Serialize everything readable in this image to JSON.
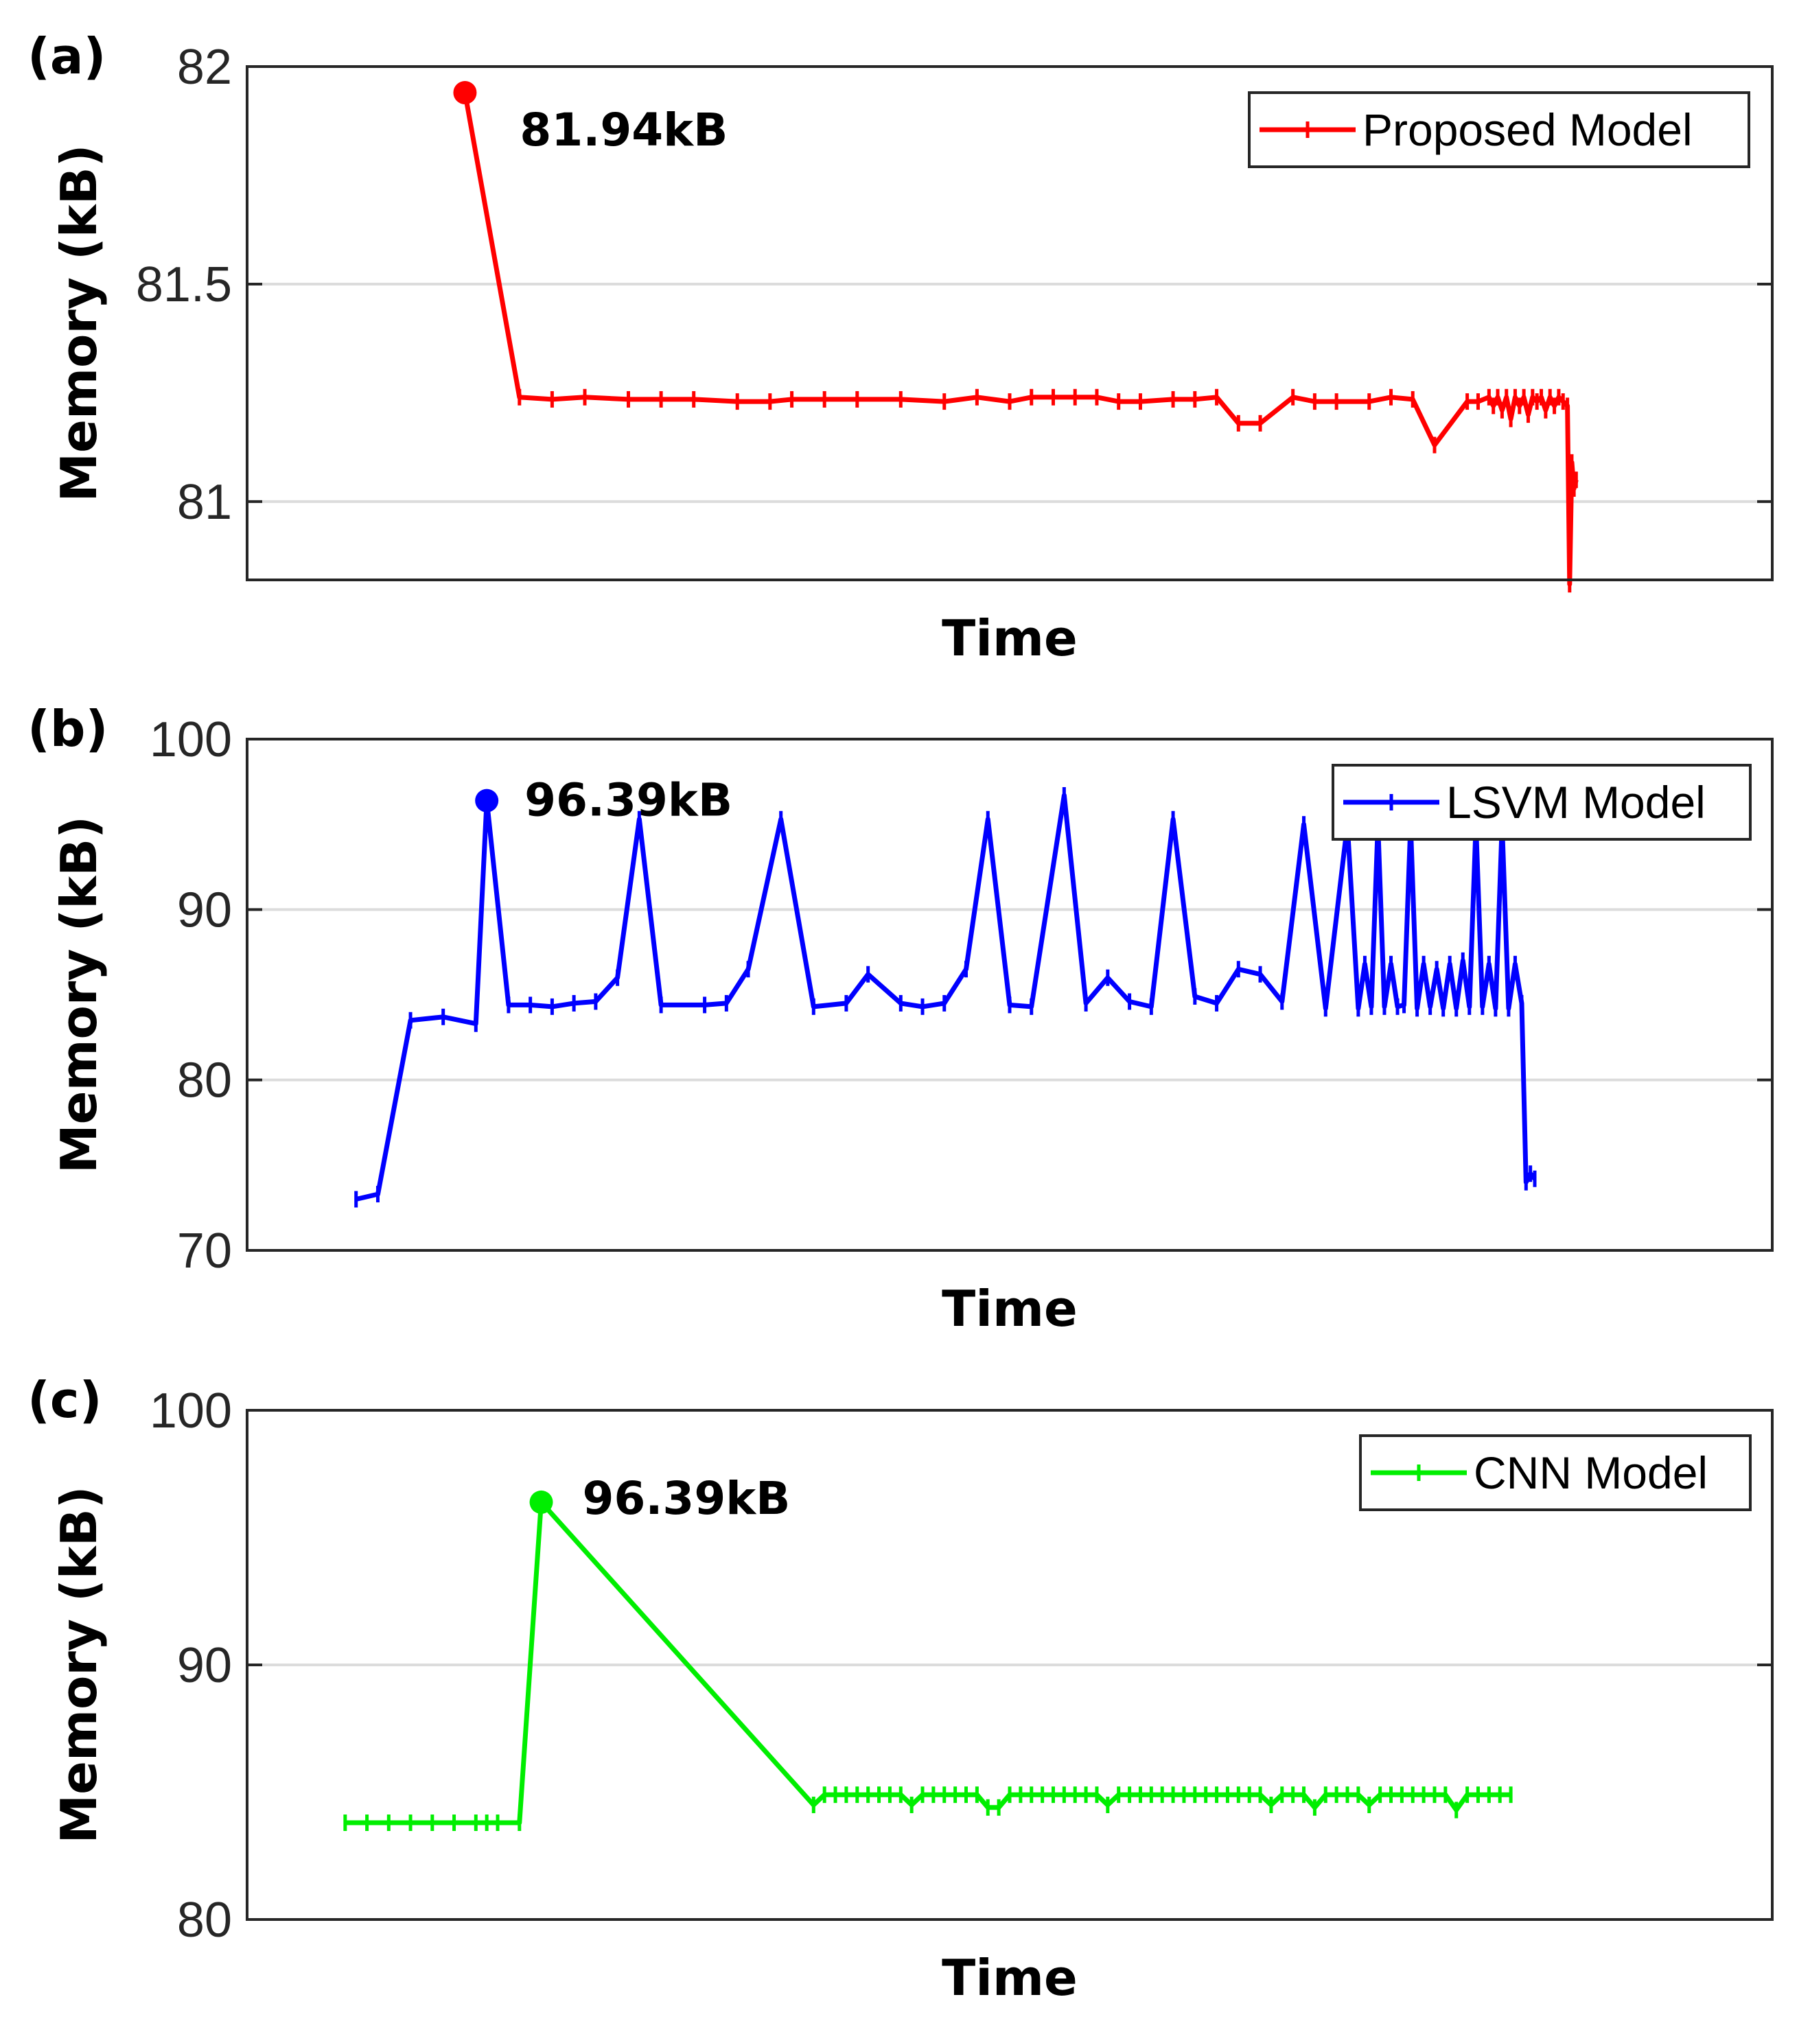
{
  "chart_data": [
    {
      "type": "line",
      "panel_label": "(a)",
      "xlabel": "Time",
      "ylabel": "Memory (kB)",
      "ylim": [
        80.82,
        82.0
      ],
      "yticks": [
        81,
        81.5,
        82
      ],
      "ytick_labels": [
        "81",
        "81.5",
        "82"
      ],
      "grid": true,
      "legend_position": "top-right",
      "color": "#ff0000",
      "series": [
        {
          "name": "Proposed Model",
          "x": [
            1.0,
            1.25,
            1.4,
            1.55,
            1.75,
            1.9,
            2.05,
            2.25,
            2.4,
            2.5,
            2.65,
            2.8,
            3.0,
            3.2,
            3.35,
            3.5,
            3.6,
            3.7,
            3.8,
            3.9,
            4.0,
            4.1,
            4.25,
            4.35,
            4.45,
            4.55,
            4.65,
            4.8,
            4.9,
            5.0,
            5.15,
            5.25,
            5.35,
            5.45,
            5.6,
            5.65,
            5.7,
            5.72,
            5.74,
            5.76,
            5.78,
            5.8,
            5.82,
            5.84,
            5.86,
            5.88,
            5.9,
            5.92,
            5.94,
            5.96,
            5.98,
            6.0,
            6.02,
            6.04,
            6.06,
            6.07,
            6.08,
            6.09,
            6.1
          ],
          "values": [
            81.94,
            81.24,
            81.235,
            81.24,
            81.235,
            81.235,
            81.235,
            81.23,
            81.23,
            81.235,
            81.235,
            81.235,
            81.235,
            81.23,
            81.24,
            81.23,
            81.24,
            81.24,
            81.24,
            81.24,
            81.23,
            81.23,
            81.235,
            81.235,
            81.24,
            81.18,
            81.18,
            81.24,
            81.23,
            81.23,
            81.23,
            81.24,
            81.235,
            81.13,
            81.23,
            81.23,
            81.24,
            81.22,
            81.24,
            81.21,
            81.24,
            81.19,
            81.24,
            81.22,
            81.24,
            81.2,
            81.24,
            81.23,
            81.24,
            81.21,
            81.24,
            81.22,
            81.24,
            81.23,
            81.22,
            80.81,
            81.09,
            81.03,
            81.05
          ]
        }
      ],
      "peak": {
        "x": 1.0,
        "value": 81.94,
        "label": "81.94kB"
      }
    },
    {
      "type": "line",
      "panel_label": "(b)",
      "xlabel": "Time",
      "ylabel": "Memory (kB)",
      "ylim": [
        70,
        100
      ],
      "yticks": [
        70,
        80,
        90,
        100
      ],
      "ytick_labels": [
        "70",
        "80",
        "90",
        "100"
      ],
      "grid": true,
      "legend_position": "top-right",
      "color": "#0000ff",
      "series": [
        {
          "name": "LSVM Model",
          "x": [
            0.5,
            0.6,
            0.75,
            0.9,
            1.05,
            1.1,
            1.2,
            1.3,
            1.4,
            1.5,
            1.6,
            1.7,
            1.8,
            1.9,
            2.1,
            2.2,
            2.3,
            2.45,
            2.6,
            2.75,
            2.85,
            3.0,
            3.1,
            3.2,
            3.3,
            3.4,
            3.5,
            3.6,
            3.75,
            3.85,
            3.95,
            4.05,
            4.15,
            4.25,
            4.35,
            4.45,
            4.55,
            4.65,
            4.75,
            4.85,
            4.95,
            5.05,
            5.1,
            5.13,
            5.16,
            5.19,
            5.22,
            5.25,
            5.28,
            5.31,
            5.34,
            5.37,
            5.4,
            5.43,
            5.46,
            5.49,
            5.52,
            5.55,
            5.58,
            5.61,
            5.64,
            5.67,
            5.7,
            5.73,
            5.76,
            5.79,
            5.82,
            5.85,
            5.87,
            5.89,
            5.91
          ],
          "values": [
            73.0,
            73.3,
            83.5,
            83.7,
            83.3,
            96.39,
            84.4,
            84.4,
            84.3,
            84.5,
            84.6,
            86.0,
            95.3,
            84.4,
            84.4,
            84.5,
            86.5,
            95.3,
            84.3,
            84.5,
            86.2,
            84.5,
            84.3,
            84.5,
            86.5,
            95.3,
            84.4,
            84.3,
            96.7,
            84.5,
            86.0,
            84.6,
            84.3,
            95.3,
            84.9,
            84.5,
            86.5,
            86.2,
            84.6,
            95.0,
            84.2,
            95.0,
            84.2,
            86.8,
            84.3,
            95.0,
            84.3,
            86.8,
            84.3,
            84.4,
            95.0,
            84.2,
            86.8,
            84.3,
            86.5,
            84.2,
            86.8,
            84.2,
            87.0,
            84.3,
            95.0,
            84.3,
            86.8,
            84.2,
            95.0,
            84.2,
            86.8,
            84.5,
            74.0,
            74.5,
            74.2
          ]
        }
      ],
      "peak": {
        "x": 1.1,
        "value": 96.39,
        "label": "96.39kB"
      }
    },
    {
      "type": "line",
      "panel_label": "(c)",
      "xlabel": "Time",
      "ylabel": "Memory (kB)",
      "ylim": [
        80,
        100
      ],
      "yticks": [
        80,
        90,
        100
      ],
      "ytick_labels": [
        "80",
        "90",
        "100"
      ],
      "grid": true,
      "legend_position": "top-right",
      "color": "#00ee00",
      "series": [
        {
          "name": "CNN Model",
          "x": [
            0.45,
            0.55,
            0.65,
            0.75,
            0.85,
            0.95,
            1.05,
            1.1,
            1.15,
            1.25,
            1.35,
            2.6,
            2.65,
            2.7,
            2.75,
            2.8,
            2.85,
            2.9,
            2.95,
            3.0,
            3.05,
            3.1,
            3.15,
            3.2,
            3.25,
            3.3,
            3.35,
            3.4,
            3.45,
            3.5,
            3.55,
            3.6,
            3.65,
            3.7,
            3.75,
            3.8,
            3.85,
            3.9,
            3.95,
            4.0,
            4.05,
            4.1,
            4.15,
            4.2,
            4.25,
            4.3,
            4.35,
            4.4,
            4.45,
            4.5,
            4.55,
            4.6,
            4.65,
            4.7,
            4.75,
            4.8,
            4.85,
            4.9,
            4.95,
            5.0,
            5.05,
            5.1,
            5.15,
            5.2,
            5.25,
            5.3,
            5.35,
            5.4,
            5.45,
            5.5,
            5.55,
            5.6,
            5.65,
            5.7,
            5.75,
            5.8
          ],
          "values": [
            83.8,
            83.8,
            83.8,
            83.8,
            83.8,
            83.8,
            83.8,
            83.8,
            83.8,
            83.8,
            96.39,
            84.5,
            84.9,
            84.9,
            84.9,
            84.9,
            84.9,
            84.9,
            84.9,
            84.9,
            84.5,
            84.9,
            84.9,
            84.9,
            84.9,
            84.9,
            84.9,
            84.4,
            84.4,
            84.9,
            84.9,
            84.9,
            84.9,
            84.9,
            84.9,
            84.9,
            84.9,
            84.9,
            84.5,
            84.9,
            84.9,
            84.9,
            84.9,
            84.9,
            84.9,
            84.9,
            84.9,
            84.9,
            84.9,
            84.9,
            84.9,
            84.9,
            84.9,
            84.5,
            84.9,
            84.9,
            84.9,
            84.4,
            84.9,
            84.9,
            84.9,
            84.9,
            84.5,
            84.9,
            84.9,
            84.9,
            84.9,
            84.9,
            84.9,
            84.9,
            84.3,
            84.9,
            84.9,
            84.9,
            84.9,
            84.9
          ]
        }
      ],
      "peak": {
        "x": 1.35,
        "value": 96.39,
        "label": "96.39kB"
      }
    }
  ]
}
